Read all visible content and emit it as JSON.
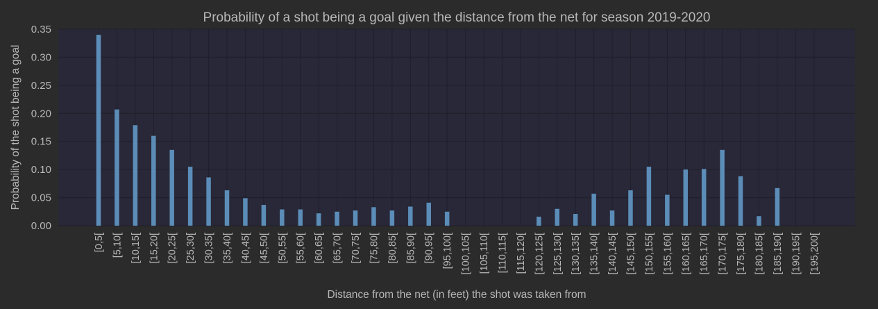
{
  "chart_data": {
    "type": "bar",
    "title": "Probability of a shot being a goal given the distance from the net for season 2019-2020",
    "xlabel": "Distance from the net (in feet) the shot was taken from",
    "ylabel": "Probability of the shot being a goal",
    "ylim": [
      0,
      0.35
    ],
    "yticks": [
      "0.00",
      "0.05",
      "0.10",
      "0.15",
      "0.20",
      "0.25",
      "0.30",
      "0.35"
    ],
    "grid": true,
    "categories": [
      "[0,5[",
      "[5,10[",
      "[10,15[",
      "[15,20[",
      "[20,25[",
      "[25,30[",
      "[30,35[",
      "[35,40[",
      "[40,45[",
      "[45,50[",
      "[50,55[",
      "[55,60[",
      "[60,65[",
      "[65,70[",
      "[70,75[",
      "[75,80[",
      "[80,85[",
      "[85,90[",
      "[90,95[",
      "[95,100[",
      "[100,105[",
      "[105,110[",
      "[110,115[",
      "[115,120[",
      "[120,125[",
      "[125,130[",
      "[130,135[",
      "[135,140[",
      "[140,145[",
      "[145,150[",
      "[150,155[",
      "[155,160[",
      "[160,165[",
      "[165,170[",
      "[170,175[",
      "[175,180[",
      "[180,185[",
      "[185,190[",
      "[190,195[",
      "[195,200["
    ],
    "values": [
      0.34,
      0.207,
      0.179,
      0.16,
      0.135,
      0.105,
      0.086,
      0.063,
      0.049,
      0.037,
      0.029,
      0.029,
      0.022,
      0.025,
      0.027,
      0.033,
      0.027,
      0.034,
      0.041,
      0.025,
      0,
      0,
      0,
      0,
      0.016,
      0.03,
      0.021,
      0.057,
      0.027,
      0.063,
      0.105,
      0.055,
      0.1,
      0.101,
      0.135,
      0.088,
      0.017,
      0.067,
      0,
      0
    ],
    "colors": {
      "background": "#2b2b2b",
      "plot_area": "#282838",
      "bar": "#5b8db8",
      "grid": "#1f1f2b",
      "text": "#b8b8b8",
      "title": "#b8b8b8"
    }
  }
}
